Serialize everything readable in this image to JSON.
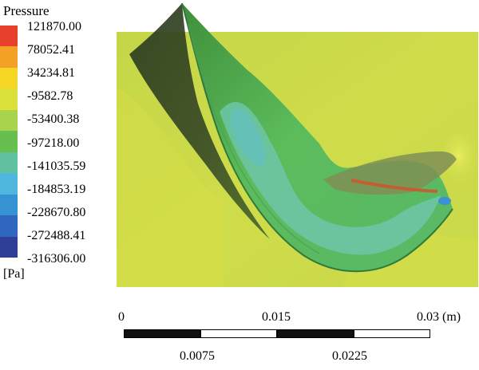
{
  "legend": {
    "title": "Pressure",
    "unit": "[Pa]",
    "values": [
      "121870.00",
      "78052.41",
      "34234.81",
      "-9582.78",
      "-53400.38",
      "-97218.00",
      "-141035.59",
      "-184853.19",
      "-228670.80",
      "-272488.41",
      "-316306.00"
    ],
    "colors": [
      "#e8412b",
      "#f2a126",
      "#f6d624",
      "#d9e13a",
      "#a9d34c",
      "#66bf4f",
      "#5fc1a0",
      "#4fb7dd",
      "#3592d3",
      "#2f67bf",
      "#2f3f97"
    ]
  },
  "scale": {
    "top_labels": [
      "0",
      "0.015",
      "0.03 (m)"
    ],
    "bottom_labels": [
      "0.0075",
      "0.0225"
    ]
  },
  "colors": {
    "background_field": "#c8d84a",
    "blade_surface": "#5ab95a",
    "low_pressure_zone": "#6fc3a0",
    "shadow": "#2f3d22"
  }
}
